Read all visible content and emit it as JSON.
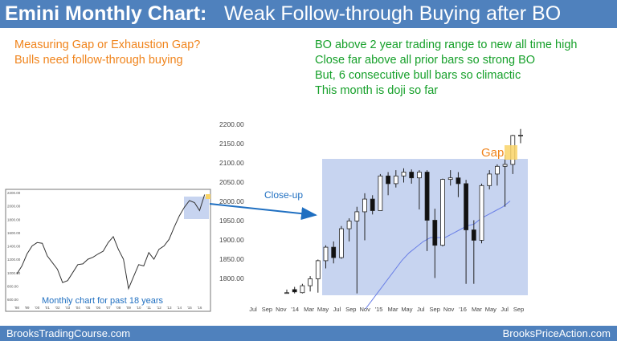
{
  "header": {
    "title_bold": "Emini Monthly Chart:",
    "title_rest": "Weak Follow-through Buying after BO"
  },
  "notes_left": [
    "Measuring Gap or Exhaustion Gap?",
    "Bulls need follow-through buying"
  ],
  "notes_right": [
    "BO above 2 year trading range to new all time high",
    "Close far above all prior bars so strong BO",
    "But, 6 consecutive bull bars so climactic",
    "This month is doji so far"
  ],
  "inset": {
    "caption": "Monthly chart for past 18 years"
  },
  "closeup_label": "Close-up",
  "gap_label": "Gap",
  "footer": {
    "left": "BrooksTradingCourse.com",
    "right": "BrooksPriceAction.com"
  },
  "colors": {
    "title_bar": "#4f81bd",
    "left_notes": "#f0841c",
    "right_notes": "#16a02a",
    "highlight": "#c7d4f0",
    "gap": "#f9d468",
    "arrow": "#1f6fc1",
    "ema": "#6a7fe6"
  },
  "chart_data": [
    {
      "type": "candlestick",
      "panel": "close-up",
      "y_ticks": [
        1800,
        1850,
        1900,
        1950,
        2000,
        2050,
        2100,
        2150,
        2200
      ],
      "y_tick_labels": [
        "1800.00",
        "1850.00",
        "1900.00",
        "1950.00",
        "2000.00",
        "2050.00",
        "2100.00",
        "2150.00",
        "2200.00"
      ],
      "ylim": [
        1760,
        2200
      ],
      "x_tick_labels": [
        "Jul",
        "Sep",
        "Nov",
        "'14",
        "Mar",
        "May",
        "Jul",
        "Sep",
        "Nov",
        "'15",
        "Mar",
        "May",
        "Jul",
        "Sep",
        "Nov",
        "'16",
        "Mar",
        "May",
        "Jul",
        "Sep"
      ],
      "bars": [
        {
          "o": 1760,
          "h": 1770,
          "l": 1760,
          "c": 1762
        },
        {
          "o": 1770,
          "h": 1777,
          "l": 1760,
          "c": 1764
        },
        {
          "o": 1762,
          "h": 1785,
          "l": 1760,
          "c": 1780
        },
        {
          "o": 1780,
          "h": 1805,
          "l": 1765,
          "c": 1798
        },
        {
          "o": 1798,
          "h": 1848,
          "l": 1762,
          "c": 1845
        },
        {
          "o": 1845,
          "h": 1885,
          "l": 1825,
          "c": 1880
        },
        {
          "o": 1880,
          "h": 1895,
          "l": 1838,
          "c": 1853
        },
        {
          "o": 1853,
          "h": 1935,
          "l": 1850,
          "c": 1928
        },
        {
          "o": 1928,
          "h": 1955,
          "l": 1895,
          "c": 1948
        },
        {
          "o": 1948,
          "h": 1985,
          "l": 1760,
          "c": 1972
        },
        {
          "o": 1972,
          "h": 2020,
          "l": 1898,
          "c": 2005
        },
        {
          "o": 2005,
          "h": 2015,
          "l": 1965,
          "c": 1975
        },
        {
          "o": 1975,
          "h": 2070,
          "l": 1975,
          "c": 2065
        },
        {
          "o": 2065,
          "h": 2075,
          "l": 2015,
          "c": 2045
        },
        {
          "o": 2045,
          "h": 2080,
          "l": 2035,
          "c": 2065
        },
        {
          "o": 2065,
          "h": 2085,
          "l": 2048,
          "c": 2075
        },
        {
          "o": 2075,
          "h": 2082,
          "l": 2045,
          "c": 2060
        },
        {
          "o": 2060,
          "h": 2080,
          "l": 1978,
          "c": 2075
        },
        {
          "o": 2075,
          "h": 2080,
          "l": 1870,
          "c": 1950
        },
        {
          "o": 1950,
          "h": 1980,
          "l": 1800,
          "c": 1885
        },
        {
          "o": 1885,
          "h": 2058,
          "l": 1882,
          "c": 2056
        },
        {
          "o": 2056,
          "h": 2080,
          "l": 2040,
          "c": 2060
        },
        {
          "o": 2060,
          "h": 2075,
          "l": 2010,
          "c": 2045
        },
        {
          "o": 2045,
          "h": 2055,
          "l": 1785,
          "c": 1925
        },
        {
          "o": 1925,
          "h": 1950,
          "l": 1785,
          "c": 1898
        },
        {
          "o": 1898,
          "h": 2045,
          "l": 1890,
          "c": 2040
        },
        {
          "o": 2040,
          "h": 2080,
          "l": 2030,
          "c": 2070
        },
        {
          "o": 2070,
          "h": 2095,
          "l": 2040,
          "c": 2090
        },
        {
          "o": 2090,
          "h": 2120,
          "l": 1985,
          "c": 2095
        },
        {
          "o": 2095,
          "h": 2172,
          "l": 2070,
          "c": 2170
        },
        {
          "o": 2170,
          "h": 2187,
          "l": 2150,
          "c": 2171
        }
      ],
      "ema": [
        1720,
        1745,
        1770,
        1795,
        1820,
        1845,
        1865,
        1880,
        1895,
        1905,
        1905,
        1905,
        1915,
        1925,
        1935,
        1940,
        1955,
        1965,
        1975,
        1985,
        2000
      ]
    },
    {
      "type": "line",
      "panel": "inset",
      "title": "Monthly chart for past 18 years",
      "y_ticks": [
        600,
        800,
        1000,
        1200,
        1400,
        1600,
        1800,
        2000,
        2200
      ],
      "y_tick_labels": [
        "600.00",
        "800.00",
        "1000.00",
        "1200.00",
        "1400.00",
        "1600.00",
        "1800.00",
        "2000.00",
        "2200.00"
      ],
      "ylim": [
        500,
        2250
      ],
      "x_tick_labels": [
        "'98",
        "'99",
        "'00",
        "'01",
        "'02",
        "'03",
        "'04",
        "'05",
        "'06",
        "'07",
        "'08",
        "'09",
        "'10",
        "'11",
        "'12",
        "'13",
        "'14",
        "'15",
        "'16"
      ],
      "series": [
        {
          "x": [
            1998,
            1998.5,
            1999,
            1999.5,
            2000,
            2000.5,
            2001,
            2001.5,
            2002,
            2002.5,
            2003,
            2003.5,
            2004,
            2004.5,
            2005,
            2005.5,
            2006,
            2006.5,
            2007,
            2007.5,
            2008,
            2008.5,
            2009,
            2009.5,
            2010,
            2010.5,
            2011,
            2011.5,
            2012,
            2012.5,
            2013,
            2013.5,
            2014,
            2014.5,
            2015,
            2015.5,
            2016,
            2016.5
          ],
          "values": [
            980,
            1100,
            1280,
            1400,
            1450,
            1440,
            1250,
            1150,
            1050,
            850,
            880,
            1000,
            1120,
            1130,
            1200,
            1230,
            1280,
            1320,
            1450,
            1540,
            1350,
            1200,
            760,
            940,
            1120,
            1100,
            1300,
            1200,
            1350,
            1400,
            1500,
            1680,
            1850,
            1980,
            2080,
            2050,
            1930,
            2170
          ]
        }
      ]
    }
  ]
}
